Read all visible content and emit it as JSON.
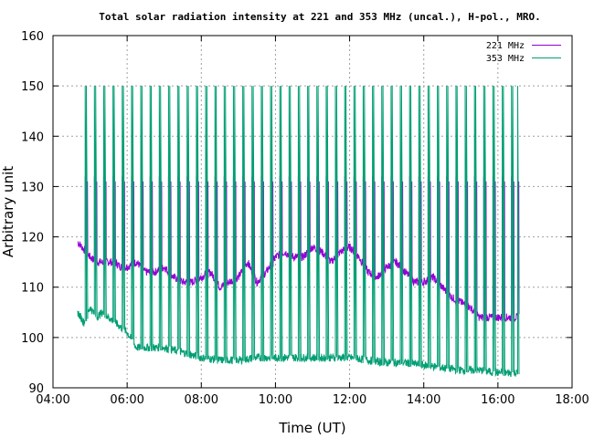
{
  "chart_data": {
    "type": "line",
    "title": "Total solar radiation intensity at 221 and 353 MHz (uncal.), H-pol., MRO.",
    "xlabel": "Time (UT)",
    "ylabel": "Arbitrary unit",
    "xlim": [
      "04:00",
      "18:00"
    ],
    "ylim": [
      90,
      160
    ],
    "x_ticks": [
      "04:00",
      "06:00",
      "08:00",
      "10:00",
      "12:00",
      "14:00",
      "16:00",
      "18:00"
    ],
    "y_ticks": [
      "90",
      "100",
      "110",
      "120",
      "130",
      "140",
      "150",
      "160"
    ],
    "grid": true,
    "legend_position": "top-right",
    "colors": {
      "s221": "#9400d3",
      "s353": "#009e73",
      "axis": "#000000",
      "grid": "#a0a0a0"
    },
    "series": [
      {
        "name": "221 MHz",
        "x": [
          "04:40",
          "04:50",
          "05:00",
          "05:10",
          "05:20",
          "05:30",
          "05:40",
          "05:50",
          "06:00",
          "06:15",
          "06:30",
          "06:45",
          "07:00",
          "07:15",
          "07:30",
          "07:45",
          "08:00",
          "08:15",
          "08:30",
          "08:45",
          "09:00",
          "09:15",
          "09:30",
          "09:45",
          "10:00",
          "10:15",
          "10:30",
          "10:45",
          "11:00",
          "11:15",
          "11:30",
          "11:45",
          "12:00",
          "12:15",
          "12:30",
          "12:45",
          "13:00",
          "13:15",
          "13:30",
          "13:45",
          "14:00",
          "14:15",
          "14:30",
          "14:45",
          "15:00",
          "15:15",
          "15:30",
          "15:45",
          "16:00",
          "16:15",
          "16:33"
        ],
        "y": [
          119,
          117.5,
          116,
          115,
          115,
          115,
          115,
          114,
          114,
          115,
          113,
          113,
          114,
          112,
          111,
          111,
          112,
          113,
          110,
          111,
          112,
          115,
          111,
          113,
          116,
          117,
          116,
          116,
          118,
          117,
          115,
          117,
          118,
          116,
          113,
          112,
          114,
          115,
          113,
          111,
          111,
          112,
          110,
          108,
          107,
          106,
          104,
          104,
          104,
          104,
          104
        ]
      },
      {
        "name": "353 MHz",
        "x": [
          "04:40",
          "04:50",
          "05:00",
          "05:10",
          "05:20",
          "05:30",
          "05:40",
          "05:50",
          "06:00",
          "06:15",
          "06:30",
          "06:45",
          "07:00",
          "07:30",
          "08:00",
          "08:30",
          "09:00",
          "09:30",
          "10:00",
          "10:30",
          "11:00",
          "11:30",
          "12:00",
          "12:30",
          "13:00",
          "13:30",
          "14:00",
          "14:30",
          "15:00",
          "15:30",
          "16:00",
          "16:33"
        ],
        "y": [
          105,
          103,
          106,
          104,
          105,
          104,
          103,
          102,
          101,
          98,
          98,
          98,
          98,
          97,
          96,
          95.5,
          95.5,
          96,
          96,
          96,
          96,
          96,
          96,
          95.5,
          95,
          95,
          94.5,
          94,
          93.5,
          93.5,
          93,
          93
        ]
      }
    ],
    "calibration_spikes": {
      "times": [
        "04:38",
        "04:53",
        "05:08",
        "05:23",
        "05:38",
        "05:53",
        "06:08",
        "06:23",
        "06:38",
        "06:53",
        "07:08",
        "07:23",
        "07:38",
        "07:53",
        "08:08",
        "08:23",
        "08:38",
        "08:53",
        "09:08",
        "09:23",
        "09:38",
        "09:53",
        "10:08",
        "10:23",
        "10:38",
        "10:53",
        "11:08",
        "11:23",
        "11:38",
        "11:53",
        "12:08",
        "12:23",
        "12:38",
        "12:53",
        "13:08",
        "13:23",
        "13:38",
        "13:53",
        "14:08",
        "14:23",
        "14:38",
        "14:53",
        "15:08",
        "15:23",
        "15:38",
        "15:53",
        "16:08",
        "16:23",
        "16:33"
      ],
      "s221_low": 123,
      "s221_high": 132,
      "s353_top": 150
    }
  }
}
